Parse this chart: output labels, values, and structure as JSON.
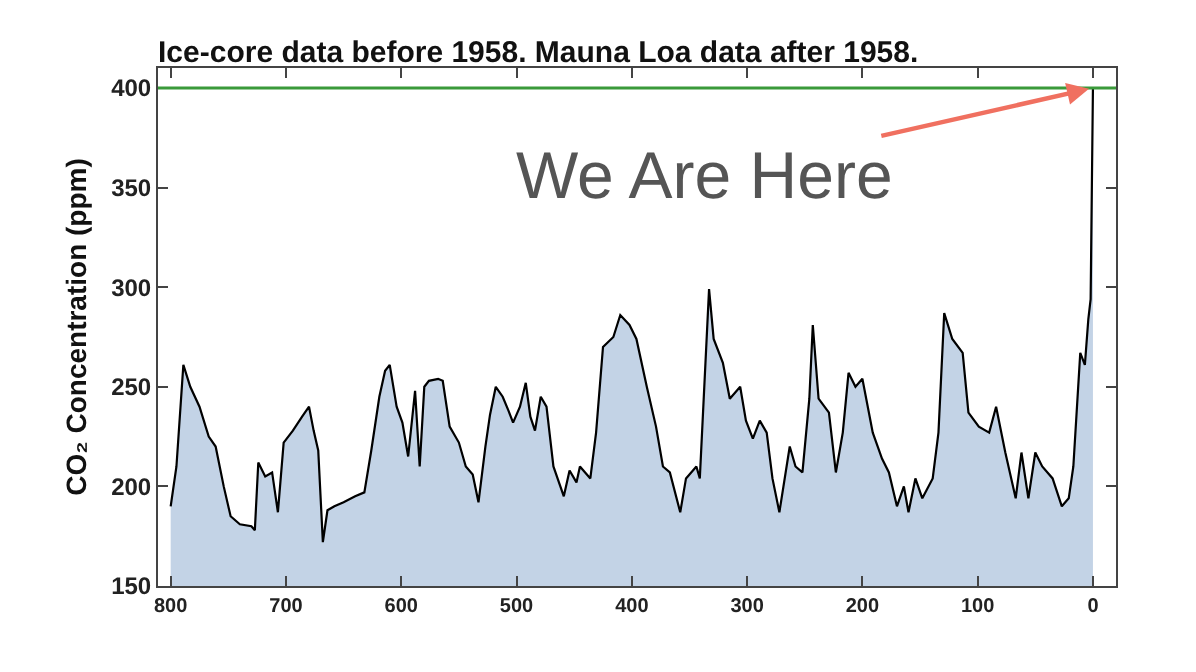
{
  "chart_data": {
    "type": "area",
    "title": "Ice-core data before 1958. Mauna Loa data after 1958.",
    "ylabel": "CO₂ Concentration (ppm)",
    "xlim": [
      811,
      -20
    ],
    "xticks": [
      800,
      700,
      600,
      500,
      400,
      300,
      200,
      100,
      0
    ],
    "ylim": [
      150,
      410
    ],
    "yticks": [
      150,
      200,
      250,
      300,
      350,
      400
    ],
    "grid": false,
    "ref_lines": [
      {
        "axis": "y",
        "value": 400,
        "color": "#3a9a3a"
      }
    ],
    "annotations": [
      {
        "text": "We Are Here",
        "x": 0,
        "y": 400
      }
    ],
    "series": [
      {
        "color": "#c3d3e6",
        "x": [
          800,
          795,
          789,
          783,
          775,
          767,
          761,
          754,
          748,
          740,
          730,
          727,
          724,
          718,
          712,
          707,
          702,
          694,
          686,
          680,
          676,
          672,
          668,
          664,
          658,
          650,
          640,
          632,
          626,
          619,
          614,
          610,
          604,
          599,
          594,
          588,
          584,
          580,
          576,
          568,
          564,
          558,
          550,
          544,
          538,
          533,
          527,
          523,
          518,
          512,
          507,
          503,
          497,
          492,
          488,
          484,
          479,
          474,
          468,
          462,
          459,
          454,
          448,
          445,
          436,
          431,
          425,
          416,
          410,
          402,
          396,
          387,
          379,
          373,
          367,
          358,
          353,
          344,
          341,
          333,
          329,
          321,
          315,
          306,
          301,
          295,
          289,
          283,
          278,
          272,
          263,
          258,
          252,
          246,
          243,
          238,
          229,
          223,
          217,
          212,
          206,
          200,
          191,
          183,
          177,
          170,
          164,
          160,
          154,
          148,
          139,
          134,
          129,
          122,
          113,
          108,
          99,
          90,
          84,
          76,
          67,
          62,
          56,
          50,
          44,
          35,
          27,
          21,
          17,
          11,
          7,
          4,
          2,
          0
        ],
        "values": [
          190,
          210,
          261,
          250,
          240,
          225,
          220,
          200,
          185,
          181,
          180,
          178,
          212,
          205,
          207,
          187,
          222,
          228,
          235,
          240,
          228,
          218,
          172,
          188,
          190,
          192,
          195,
          197,
          218,
          245,
          258,
          261,
          240,
          232,
          215,
          248,
          210,
          250,
          253,
          254,
          253,
          230,
          222,
          210,
          206,
          192,
          220,
          236,
          250,
          245,
          238,
          232,
          240,
          252,
          235,
          228,
          245,
          240,
          210,
          200,
          195,
          208,
          202,
          210,
          204,
          227,
          270,
          275,
          286,
          281,
          274,
          250,
          230,
          210,
          207,
          187,
          204,
          210,
          204,
          299,
          274,
          262,
          244,
          250,
          233,
          224,
          233,
          227,
          204,
          187,
          220,
          210,
          207,
          244,
          281,
          244,
          237,
          207,
          227,
          257,
          250,
          254,
          227,
          214,
          207,
          190,
          200,
          187,
          204,
          194,
          204,
          227,
          287,
          274,
          267,
          237,
          230,
          227,
          240,
          217,
          194,
          217,
          194,
          217,
          210,
          204,
          190,
          194,
          210,
          267,
          261,
          284,
          294,
          400
        ]
      }
    ]
  }
}
